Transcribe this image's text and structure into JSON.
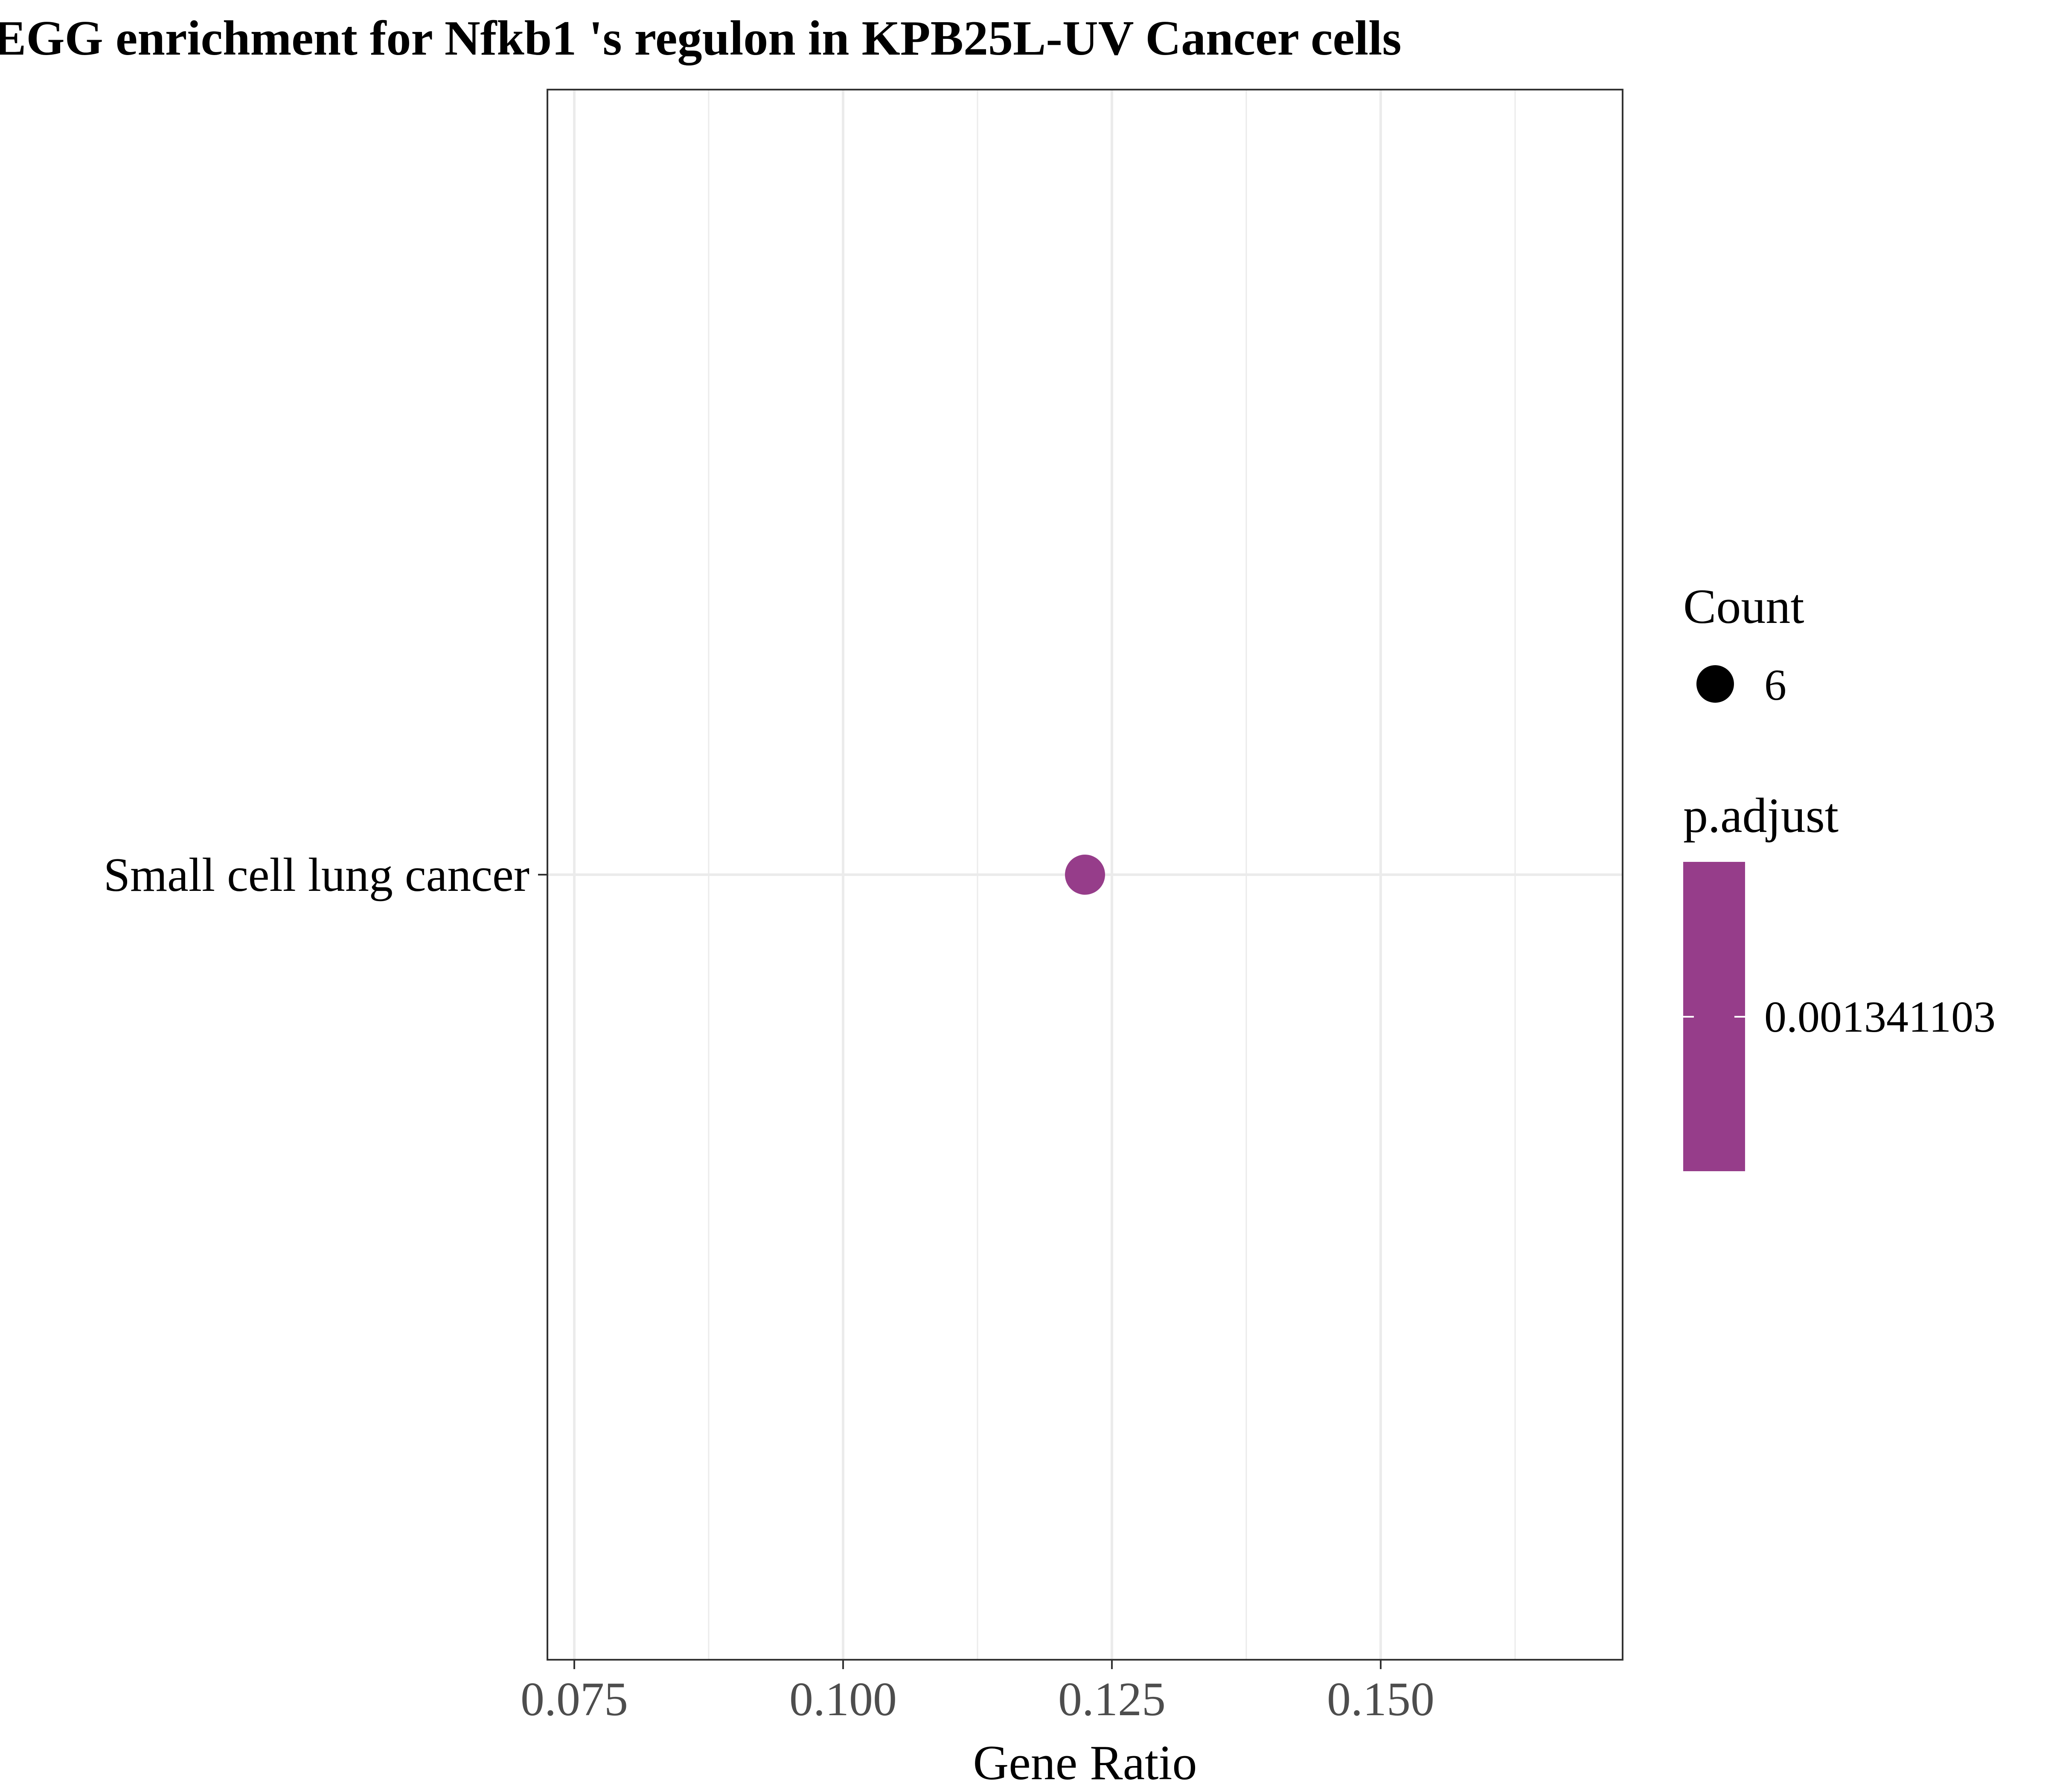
{
  "chart_data": {
    "type": "scatter",
    "title": "EGG enrichment for Nfkb1 's regulon in KPB25L-UV Cancer cells",
    "xlabel": "Gene Ratio",
    "ylabel": "",
    "xlim": [
      0.0725,
      0.1725
    ],
    "x_ticks": [
      0.075,
      0.1,
      0.125,
      0.15
    ],
    "x_tick_labels": [
      "0.075",
      "0.100",
      "0.125",
      "0.150"
    ],
    "categories": [
      "Small cell lung cancer"
    ],
    "points": [
      {
        "category": "Small cell lung cancer",
        "x": 0.1225,
        "count": 6,
        "p_adjust": 0.001341103,
        "color": "#963d8a"
      }
    ],
    "grid": true,
    "legend_placement": "right",
    "legend": {
      "size_title": "Count",
      "size_entries": [
        {
          "label": "6"
        }
      ],
      "color_title": "p.adjust",
      "color_entries": [
        {
          "label": "0.001341103",
          "color": "#963d8a"
        }
      ]
    }
  }
}
